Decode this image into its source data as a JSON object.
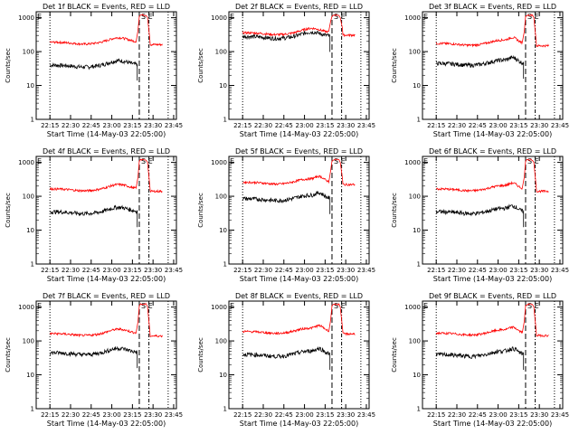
{
  "panels": [
    {
      "title": "Det 1f BLACK = Events, RED = LLD",
      "ylabel": "Counts/sec",
      "xlabel": "Start Time (14-May-03 22:05:00)",
      "black": 40,
      "red": 190,
      "shape": 1
    },
    {
      "title": "Det 2f BLACK = Events, RED = LLD",
      "ylabel": "Counts/sec",
      "xlabel": "Start Time (14-May-03 22:05:00)",
      "black": 280,
      "red": 360,
      "shape": 1
    },
    {
      "title": "Det 3f BLACK = Events, RED = LLD",
      "ylabel": "Counts/sec",
      "xlabel": "Start Time (14-May-03 22:05:00)",
      "black": 45,
      "red": 175,
      "shape": 2
    },
    {
      "title": "Det 4f BLACK = Events, RED = LLD",
      "ylabel": "Counts/sec",
      "xlabel": "Start Time (14-May-03 22:05:00)",
      "black": 35,
      "red": 165,
      "shape": 1
    },
    {
      "title": "Det 5f BLACK = Events, RED = LLD",
      "ylabel": "Counts/sec",
      "xlabel": "Start Time (14-May-03 22:05:00)",
      "black": 85,
      "red": 260,
      "shape": 2
    },
    {
      "title": "Det 6f BLACK = Events, RED = LLD",
      "ylabel": "Counts/sec",
      "xlabel": "Start Time (14-May-03 22:05:00)",
      "black": 35,
      "red": 165,
      "shape": 2
    },
    {
      "title": "Det 7f BLACK = Events, RED = LLD",
      "ylabel": "Counts/sec",
      "xlabel": "Start Time (14-May-03 22:05:00)",
      "black": 45,
      "red": 165,
      "shape": 1
    },
    {
      "title": "Det 8f BLACK = Events, RED = LLD",
      "ylabel": "Counts/sec",
      "xlabel": "Start Time (14-May-03 22:05:00)",
      "black": 40,
      "red": 190,
      "shape": 2
    },
    {
      "title": "Det 9f BLACK = Events, RED = LLD",
      "ylabel": "Counts/sec",
      "xlabel": "Start Time (14-May-03 22:05:00)",
      "black": 40,
      "red": 170,
      "shape": 2
    }
  ],
  "colors": {
    "events": "#000000",
    "lld": "#ff0000",
    "axis": "#000000"
  },
  "chart_data": {
    "type": "line",
    "x_tick_labels": [
      "22:15",
      "22:30",
      "22:45",
      "23:00",
      "23:15",
      "23:30",
      "23:45"
    ],
    "y_tick_labels": [
      "1",
      "10",
      "100",
      "1000"
    ],
    "yscale": "log",
    "ylim": [
      1,
      1500
    ],
    "xlim_minutes_after_start": [
      0,
      102
    ],
    "markers": [
      "S",
      "E"
    ]
  }
}
